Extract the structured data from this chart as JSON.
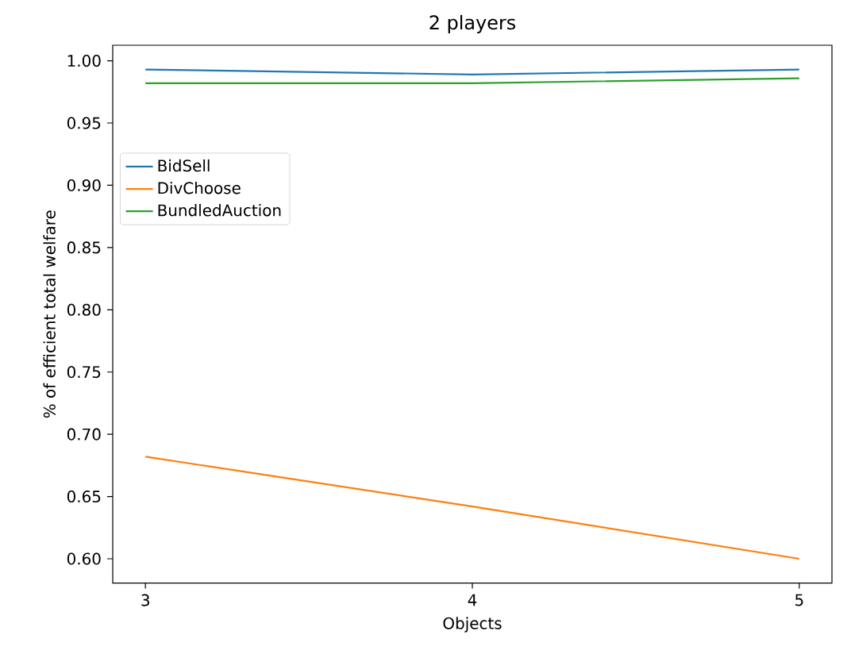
{
  "chart_data": {
    "type": "line",
    "title": "2 players",
    "xlabel": "Objects",
    "ylabel": "% of efficient total welfare",
    "x": [
      3,
      4,
      5
    ],
    "series": [
      {
        "name": "BidSell",
        "color": "#1f77b4",
        "values": [
          0.993,
          0.989,
          0.993
        ]
      },
      {
        "name": "DivChoose",
        "color": "#ff7f0e",
        "values": [
          0.682,
          0.642,
          0.6
        ]
      },
      {
        "name": "BundledAuction",
        "color": "#2ca02c",
        "values": [
          0.982,
          0.982,
          0.986
        ]
      }
    ],
    "xlim": [
      2.9,
      5.1
    ],
    "ylim": [
      0.5805,
      1.0125
    ],
    "xticks": [
      3,
      4,
      5
    ],
    "yticks": [
      {
        "value": 0.6,
        "label": "0.60"
      },
      {
        "value": 0.65,
        "label": "0.65"
      },
      {
        "value": 0.7,
        "label": "0.70"
      },
      {
        "value": 0.75,
        "label": "0.75"
      },
      {
        "value": 0.8,
        "label": "0.80"
      },
      {
        "value": 0.85,
        "label": "0.85"
      },
      {
        "value": 0.9,
        "label": "0.90"
      },
      {
        "value": 0.95,
        "label": "0.95"
      },
      {
        "value": 1.0,
        "label": "1.00"
      }
    ],
    "legend": "top left",
    "grid": false,
    "marker": "none",
    "line_style": "solid"
  }
}
